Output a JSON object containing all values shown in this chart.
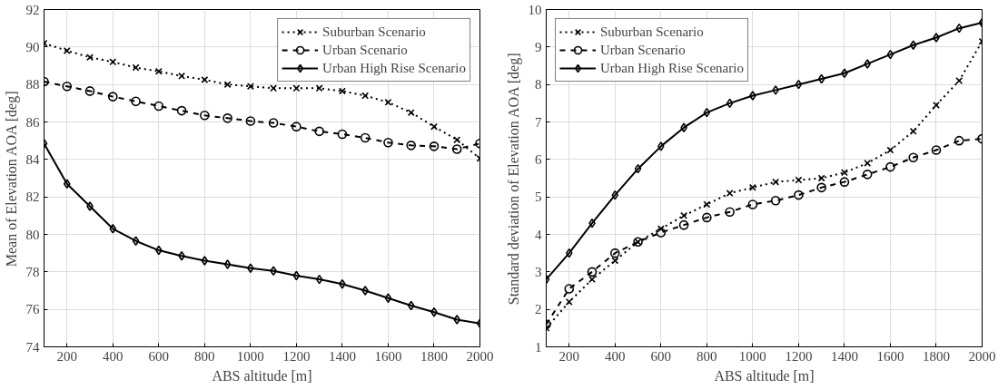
{
  "chart_data": [
    {
      "type": "line",
      "xlabel": "ABS altitude [m]",
      "ylabel": "Mean of Elevation AOA [deg]",
      "x": [
        100,
        200,
        300,
        400,
        500,
        600,
        700,
        800,
        900,
        1000,
        1100,
        1200,
        1300,
        1400,
        1500,
        1600,
        1700,
        1800,
        1900,
        2000
      ],
      "xlim": [
        100,
        2000
      ],
      "xticks": [
        200,
        400,
        600,
        800,
        1000,
        1200,
        1400,
        1600,
        1800,
        2000
      ],
      "ylim": [
        74,
        92
      ],
      "yticks": [
        74,
        76,
        78,
        80,
        82,
        84,
        86,
        88,
        90,
        92
      ],
      "grid": true,
      "legend": "top right",
      "series": [
        {
          "name": "Suburban Scenario",
          "color": "#000000",
          "marker": "cross",
          "line_style": "dotted",
          "values": [
            90.2,
            89.8,
            89.45,
            89.2,
            88.9,
            88.7,
            88.45,
            88.25,
            88.0,
            87.9,
            87.8,
            87.8,
            87.8,
            87.65,
            87.4,
            87.05,
            86.5,
            85.75,
            85.05,
            84.05
          ]
        },
        {
          "name": "Urban Scenario",
          "color": "#000000",
          "marker": "circle",
          "line_style": "dashed",
          "values": [
            88.15,
            87.9,
            87.65,
            87.35,
            87.1,
            86.85,
            86.6,
            86.35,
            86.2,
            86.05,
            85.95,
            85.75,
            85.5,
            85.35,
            85.15,
            84.9,
            84.75,
            84.7,
            84.55,
            84.85
          ]
        },
        {
          "name": "Urban High Rise Scenario",
          "color": "#000000",
          "marker": "diamond",
          "line_style": "solid",
          "values": [
            84.85,
            82.7,
            81.5,
            80.3,
            79.65,
            79.15,
            78.85,
            78.6,
            78.4,
            78.2,
            78.05,
            77.8,
            77.6,
            77.35,
            77.0,
            76.6,
            76.2,
            75.85,
            75.45,
            75.25
          ]
        }
      ]
    },
    {
      "type": "line",
      "xlabel": "ABS altitude [m]",
      "ylabel": "Standard deviation of Elevation AOA [deg]",
      "x": [
        100,
        200,
        300,
        400,
        500,
        600,
        700,
        800,
        900,
        1000,
        1100,
        1200,
        1300,
        1400,
        1500,
        1600,
        1700,
        1800,
        1900,
        2000
      ],
      "xlim": [
        100,
        2000
      ],
      "xticks": [
        200,
        400,
        600,
        800,
        1000,
        1200,
        1400,
        1600,
        1800,
        2000
      ],
      "ylim": [
        1,
        10
      ],
      "yticks": [
        1,
        2,
        3,
        4,
        5,
        6,
        7,
        8,
        9,
        10
      ],
      "grid": true,
      "legend": "top left",
      "series": [
        {
          "name": "Suburban Scenario",
          "color": "#000000",
          "marker": "cross",
          "line_style": "dotted",
          "values": [
            1.5,
            2.2,
            2.8,
            3.3,
            3.8,
            4.15,
            4.5,
            4.8,
            5.1,
            5.25,
            5.4,
            5.45,
            5.5,
            5.65,
            5.9,
            6.25,
            6.75,
            7.45,
            8.1,
            9.15
          ]
        },
        {
          "name": "Urban Scenario",
          "color": "#000000",
          "marker": "circle",
          "line_style": "dashed",
          "values": [
            1.6,
            2.55,
            3.0,
            3.5,
            3.8,
            4.05,
            4.25,
            4.45,
            4.6,
            4.8,
            4.9,
            5.05,
            5.25,
            5.4,
            5.6,
            5.8,
            6.05,
            6.25,
            6.5,
            6.55
          ]
        },
        {
          "name": "Urban High Rise Scenario",
          "color": "#000000",
          "marker": "diamond",
          "line_style": "solid",
          "values": [
            2.8,
            3.5,
            4.3,
            5.05,
            5.75,
            6.35,
            6.85,
            7.25,
            7.5,
            7.7,
            7.85,
            8.0,
            8.15,
            8.3,
            8.55,
            8.8,
            9.05,
            9.25,
            9.5,
            9.65
          ]
        }
      ]
    }
  ]
}
